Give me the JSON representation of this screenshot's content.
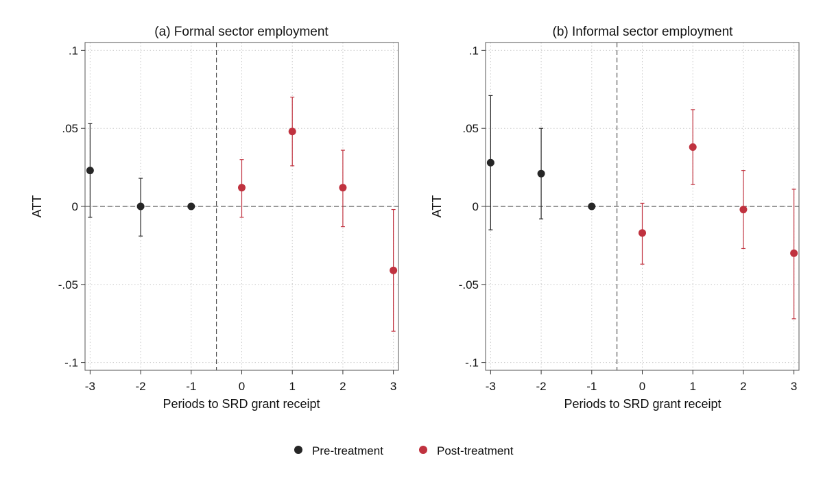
{
  "chart_data": [
    {
      "type": "scatter",
      "title": "(a) Formal sector employment",
      "xlabel": "Periods to SRD grant receipt",
      "ylabel": "ATT",
      "xlim": [
        -3.1,
        3.1
      ],
      "ylim": [
        -0.105,
        0.105
      ],
      "x_ticks": [
        -3,
        -2,
        -1,
        0,
        1,
        2,
        3
      ],
      "x_tick_labels": [
        "-3",
        "-2",
        "-1",
        "0",
        "1",
        "2",
        "3"
      ],
      "y_ticks": [
        0.1,
        0.05,
        0,
        -0.05,
        -0.1
      ],
      "y_tick_labels": [
        ".1",
        ".05",
        "0",
        "-.05",
        "-.1"
      ],
      "grid": true,
      "reference_lines": {
        "horizontal_y": 0,
        "vertical_x": -0.5
      },
      "series": [
        {
          "name": "Pre-treatment",
          "color": "#262626",
          "points": [
            {
              "x": -3,
              "y": 0.023,
              "lo": -0.007,
              "hi": 0.053
            },
            {
              "x": -2,
              "y": 0.0,
              "lo": -0.019,
              "hi": 0.018
            },
            {
              "x": -1,
              "y": 0.0,
              "lo": 0.0,
              "hi": 0.0
            }
          ]
        },
        {
          "name": "Post-treatment",
          "color": "#c0323f",
          "points": [
            {
              "x": 0,
              "y": 0.012,
              "lo": -0.007,
              "hi": 0.03
            },
            {
              "x": 1,
              "y": 0.048,
              "lo": 0.026,
              "hi": 0.07
            },
            {
              "x": 2,
              "y": 0.012,
              "lo": -0.013,
              "hi": 0.036
            },
            {
              "x": 3,
              "y": -0.041,
              "lo": -0.08,
              "hi": -0.002
            }
          ]
        }
      ]
    },
    {
      "type": "scatter",
      "title": "(b) Informal sector employment",
      "xlabel": "Periods to SRD grant receipt",
      "ylabel": "ATT",
      "xlim": [
        -3.1,
        3.1
      ],
      "ylim": [
        -0.105,
        0.105
      ],
      "x_ticks": [
        -3,
        -2,
        -1,
        0,
        1,
        2,
        3
      ],
      "x_tick_labels": [
        "-3",
        "-2",
        "-1",
        "0",
        "1",
        "2",
        "3"
      ],
      "y_ticks": [
        0.1,
        0.05,
        0,
        -0.05,
        -0.1
      ],
      "y_tick_labels": [
        ".1",
        ".05",
        "0",
        "-.05",
        "-.1"
      ],
      "grid": true,
      "reference_lines": {
        "horizontal_y": 0,
        "vertical_x": -0.5
      },
      "series": [
        {
          "name": "Pre-treatment",
          "color": "#262626",
          "points": [
            {
              "x": -3,
              "y": 0.028,
              "lo": -0.015,
              "hi": 0.071
            },
            {
              "x": -2,
              "y": 0.021,
              "lo": -0.008,
              "hi": 0.05
            },
            {
              "x": -1,
              "y": 0.0,
              "lo": 0.0,
              "hi": 0.0
            }
          ]
        },
        {
          "name": "Post-treatment",
          "color": "#c0323f",
          "points": [
            {
              "x": 0,
              "y": -0.017,
              "lo": -0.037,
              "hi": 0.002
            },
            {
              "x": 1,
              "y": 0.038,
              "lo": 0.014,
              "hi": 0.062
            },
            {
              "x": 2,
              "y": -0.002,
              "lo": -0.027,
              "hi": 0.023
            },
            {
              "x": 3,
              "y": -0.03,
              "lo": -0.072,
              "hi": 0.011
            }
          ]
        }
      ]
    }
  ],
  "legend": {
    "placement": "bottom",
    "items": [
      {
        "label": "Pre-treatment",
        "color": "#262626"
      },
      {
        "label": "Post-treatment",
        "color": "#c0323f"
      }
    ]
  }
}
